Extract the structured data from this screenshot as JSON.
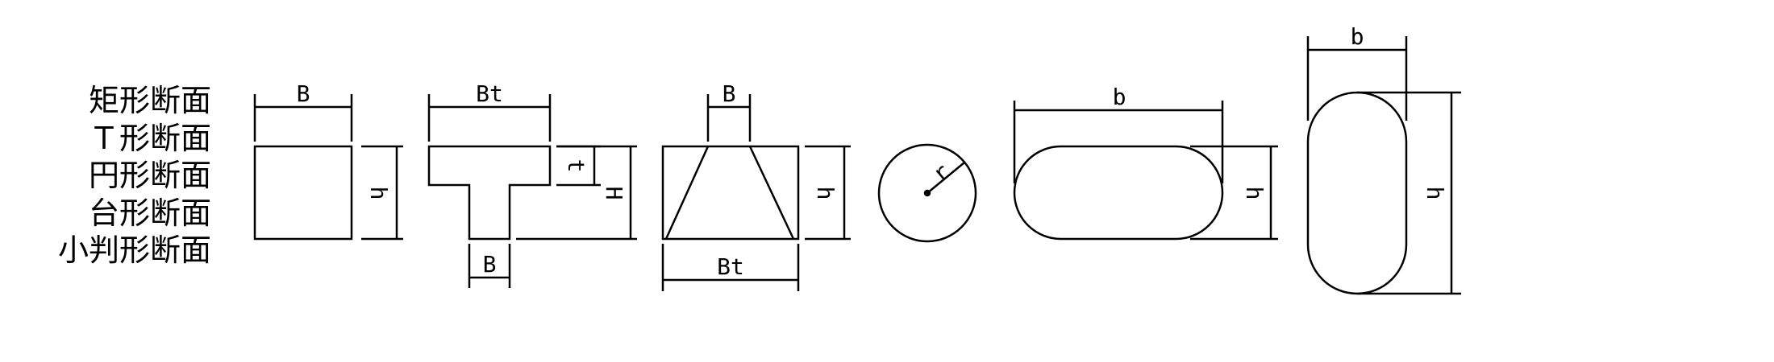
{
  "section_labels": [
    "矩形断面",
    "Ｔ形断面",
    "円形断面",
    "台形断面",
    "小判形断面"
  ],
  "dimension_labels": {
    "rect_width": "B",
    "rect_height": "h",
    "tee_top_width": "Bt",
    "tee_flange_thickness": "t",
    "tee_total_height": "H",
    "tee_web_width": "B",
    "trap_top_width": "B",
    "trap_bottom_width": "Bt",
    "trap_height": "h",
    "circle_radius": "r",
    "oval_h_width": "b",
    "oval_h_height": "h",
    "oval_v_width": "b",
    "oval_v_height": "h"
  },
  "colors": {
    "line": "#000000",
    "background": "#ffffff"
  }
}
